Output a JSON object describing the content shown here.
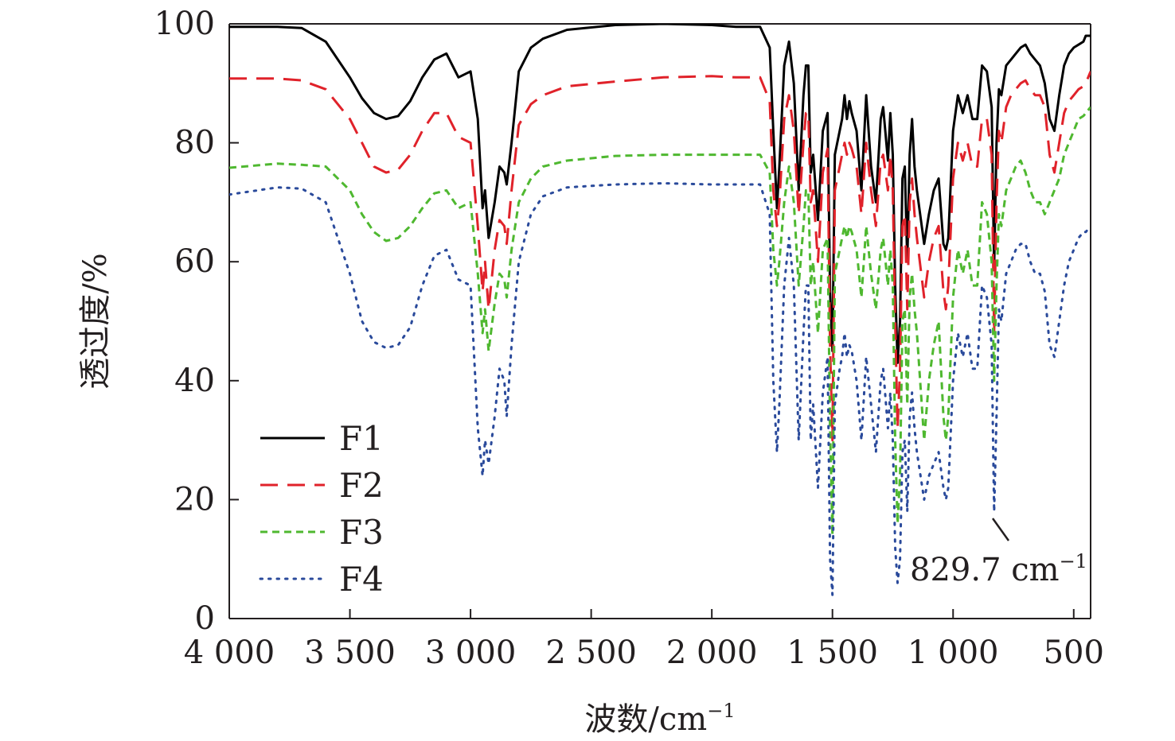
{
  "chart_data": {
    "type": "line",
    "title": "",
    "xlabel": "波数/cm",
    "xlabel_sup": "−1",
    "ylabel": "透过度/%",
    "xlim": [
      4000,
      430
    ],
    "ylim": [
      0,
      100
    ],
    "x_ticks": [
      4000,
      3500,
      3000,
      2500,
      2000,
      1500,
      1000,
      500
    ],
    "x_tick_labels": [
      "4 000",
      "3 500",
      "3 000",
      "2 500",
      "2 000",
      "1 500",
      "1 000",
      "500"
    ],
    "y_ticks": [
      0,
      20,
      40,
      60,
      80,
      100
    ],
    "y_tick_labels": [
      "0",
      "20",
      "40",
      "60",
      "80",
      "100"
    ],
    "legend": [
      "F1",
      "F2",
      "F3",
      "F4"
    ],
    "legend_position": "bottom-left",
    "annotation": {
      "text": "829.7 cm",
      "sup": "−1",
      "x": 829.7
    },
    "series": [
      {
        "name": "F1",
        "color": "#000000",
        "dash": "solid",
        "x": [
          4000,
          3800,
          3700,
          3600,
          3500,
          3450,
          3400,
          3350,
          3300,
          3250,
          3200,
          3150,
          3100,
          3050,
          3000,
          2970,
          2950,
          2940,
          2925,
          2900,
          2880,
          2860,
          2850,
          2830,
          2800,
          2750,
          2700,
          2600,
          2400,
          2200,
          2000,
          1900,
          1800,
          1760,
          1745,
          1730,
          1720,
          1700,
          1680,
          1660,
          1640,
          1620,
          1610,
          1600,
          1590,
          1580,
          1560,
          1540,
          1520,
          1510,
          1500,
          1490,
          1470,
          1460,
          1450,
          1440,
          1430,
          1420,
          1400,
          1380,
          1360,
          1340,
          1320,
          1300,
          1290,
          1270,
          1260,
          1250,
          1240,
          1230,
          1220,
          1210,
          1200,
          1190,
          1180,
          1170,
          1160,
          1150,
          1120,
          1100,
          1080,
          1060,
          1040,
          1030,
          1020,
          1000,
          980,
          960,
          940,
          920,
          900,
          880,
          860,
          840,
          830,
          820,
          810,
          800,
          780,
          760,
          740,
          720,
          700,
          680,
          660,
          640,
          620,
          600,
          580,
          560,
          540,
          520,
          500,
          480,
          460,
          450,
          430
        ],
        "y": [
          99.5,
          99.5,
          99.3,
          97,
          91,
          87.5,
          85,
          84,
          84.5,
          87,
          91,
          94,
          95,
          91,
          92,
          84,
          69,
          72,
          64,
          70,
          76,
          75,
          73,
          80,
          92,
          96,
          97.5,
          99,
          99.8,
          100,
          99.8,
          99.5,
          99.5,
          96,
          82,
          69,
          76,
          93,
          97,
          90,
          72,
          88,
          93,
          93,
          75,
          78,
          67,
          82,
          85,
          55,
          45,
          78,
          82,
          84,
          88,
          84,
          87,
          85,
          82,
          72,
          88,
          76,
          70,
          84,
          86,
          77,
          85,
          78,
          56,
          43,
          50,
          74,
          76,
          60,
          78,
          84,
          76,
          72,
          63,
          68,
          72,
          74,
          63,
          62,
          64,
          82,
          88,
          85,
          88,
          84,
          84,
          93,
          92,
          86,
          59,
          80,
          89,
          88,
          93,
          94,
          95,
          96,
          96.5,
          95,
          94,
          93,
          90,
          84,
          82,
          88,
          93,
          95,
          96,
          96.5,
          97,
          98,
          98
        ]
      },
      {
        "name": "F2",
        "color": "#e0222a",
        "dash": "long-dash",
        "x": [
          4000,
          3800,
          3700,
          3600,
          3500,
          3450,
          3400,
          3350,
          3300,
          3250,
          3200,
          3150,
          3100,
          3050,
          3000,
          2970,
          2950,
          2940,
          2925,
          2900,
          2880,
          2860,
          2850,
          2830,
          2800,
          2750,
          2700,
          2600,
          2400,
          2200,
          2000,
          1900,
          1800,
          1760,
          1745,
          1730,
          1720,
          1700,
          1680,
          1660,
          1640,
          1620,
          1610,
          1600,
          1590,
          1580,
          1560,
          1540,
          1520,
          1510,
          1500,
          1490,
          1470,
          1460,
          1450,
          1440,
          1430,
          1420,
          1400,
          1380,
          1360,
          1340,
          1320,
          1300,
          1290,
          1270,
          1260,
          1250,
          1240,
          1230,
          1220,
          1210,
          1200,
          1190,
          1180,
          1170,
          1160,
          1150,
          1120,
          1100,
          1080,
          1060,
          1040,
          1030,
          1020,
          1000,
          980,
          960,
          940,
          920,
          900,
          880,
          860,
          840,
          830,
          820,
          810,
          800,
          780,
          760,
          740,
          720,
          700,
          680,
          660,
          640,
          620,
          600,
          580,
          560,
          540,
          520,
          500,
          480,
          460,
          450,
          430
        ],
        "y": [
          90.8,
          90.8,
          90.5,
          89,
          84,
          80,
          76,
          75,
          75.5,
          78,
          82,
          85,
          85,
          81,
          80,
          66,
          55,
          60,
          52,
          62,
          67,
          66,
          63,
          72,
          83,
          86.5,
          88,
          89.5,
          90.3,
          91,
          91.2,
          91,
          91,
          87,
          72,
          66,
          70,
          84,
          88,
          82,
          68,
          80,
          85,
          85,
          70,
          72,
          60,
          75,
          79,
          46,
          30,
          72,
          76,
          78,
          80,
          78,
          80,
          79,
          76,
          68,
          80,
          72,
          66,
          77,
          78,
          72,
          78,
          72,
          50,
          32,
          42,
          66,
          68,
          52,
          70,
          74,
          68,
          64,
          54,
          60,
          64,
          66,
          55,
          52,
          56,
          74,
          80,
          77,
          80,
          76,
          76,
          84,
          84,
          78,
          48,
          70,
          82,
          80,
          86,
          88,
          89,
          90,
          90.5,
          89,
          88,
          88,
          86,
          78,
          75,
          80,
          85,
          87,
          88,
          89,
          89.5,
          90,
          92
        ]
      },
      {
        "name": "F3",
        "color": "#4fb830",
        "dash": "short-dash",
        "x": [
          4000,
          3800,
          3700,
          3600,
          3500,
          3450,
          3400,
          3350,
          3300,
          3250,
          3200,
          3150,
          3100,
          3050,
          3000,
          2970,
          2950,
          2940,
          2925,
          2900,
          2880,
          2860,
          2850,
          2830,
          2800,
          2750,
          2700,
          2600,
          2400,
          2200,
          2000,
          1900,
          1800,
          1760,
          1745,
          1730,
          1720,
          1700,
          1680,
          1660,
          1640,
          1620,
          1610,
          1600,
          1590,
          1580,
          1560,
          1540,
          1520,
          1510,
          1500,
          1490,
          1470,
          1460,
          1450,
          1440,
          1430,
          1420,
          1400,
          1380,
          1360,
          1340,
          1320,
          1300,
          1290,
          1270,
          1260,
          1250,
          1240,
          1230,
          1220,
          1210,
          1200,
          1190,
          1180,
          1170,
          1160,
          1150,
          1120,
          1100,
          1080,
          1060,
          1040,
          1030,
          1020,
          1000,
          980,
          960,
          940,
          920,
          900,
          880,
          860,
          840,
          830,
          820,
          810,
          800,
          780,
          760,
          740,
          720,
          700,
          680,
          660,
          640,
          620,
          600,
          580,
          560,
          540,
          520,
          500,
          480,
          460,
          450,
          430
        ],
        "y": [
          75.8,
          76.5,
          76.3,
          76,
          72,
          68,
          65,
          63.5,
          64,
          66,
          69,
          71.5,
          72,
          69,
          70,
          58,
          48,
          52,
          45,
          53,
          58,
          57,
          54,
          62,
          70,
          74,
          76,
          77,
          77.8,
          78,
          78,
          78,
          78,
          75,
          62,
          56,
          60,
          70,
          76,
          70,
          56,
          66,
          72,
          72,
          56,
          60,
          48,
          62,
          64,
          32,
          14,
          58,
          62,
          64,
          66,
          64,
          66,
          65,
          62,
          54,
          66,
          58,
          52,
          62,
          64,
          56,
          62,
          56,
          30,
          16,
          24,
          50,
          52,
          36,
          54,
          58,
          52,
          48,
          30,
          40,
          46,
          50,
          34,
          30,
          34,
          54,
          62,
          58,
          62,
          56,
          56,
          70,
          68,
          60,
          40,
          56,
          68,
          66,
          72,
          74,
          76,
          77,
          75,
          72,
          70,
          70,
          68,
          70,
          72,
          74,
          78,
          80,
          82,
          84,
          84.5,
          85,
          86
        ]
      },
      {
        "name": "F4",
        "color": "#2a4a9b",
        "dash": "dotted",
        "x": [
          4000,
          3800,
          3700,
          3600,
          3500,
          3450,
          3400,
          3350,
          3300,
          3250,
          3200,
          3150,
          3100,
          3050,
          3000,
          2970,
          2950,
          2940,
          2925,
          2900,
          2880,
          2860,
          2850,
          2830,
          2800,
          2750,
          2700,
          2600,
          2400,
          2200,
          2000,
          1900,
          1800,
          1760,
          1745,
          1730,
          1720,
          1700,
          1680,
          1660,
          1640,
          1620,
          1610,
          1600,
          1590,
          1580,
          1560,
          1540,
          1520,
          1510,
          1500,
          1490,
          1470,
          1460,
          1450,
          1440,
          1430,
          1420,
          1400,
          1380,
          1360,
          1340,
          1320,
          1300,
          1290,
          1270,
          1260,
          1250,
          1240,
          1230,
          1220,
          1210,
          1200,
          1190,
          1180,
          1170,
          1160,
          1150,
          1120,
          1100,
          1080,
          1060,
          1040,
          1030,
          1020,
          1000,
          980,
          960,
          940,
          920,
          900,
          880,
          860,
          840,
          830,
          820,
          810,
          800,
          780,
          760,
          740,
          720,
          700,
          680,
          660,
          640,
          620,
          600,
          580,
          560,
          540,
          520,
          500,
          480,
          460,
          450,
          430
        ],
        "y": [
          71.3,
          72.5,
          72.3,
          70,
          58,
          50,
          46.5,
          45.5,
          46,
          49,
          56,
          61,
          62,
          57,
          56,
          32,
          24,
          30,
          26,
          34,
          42,
          40,
          34,
          46,
          60,
          68,
          71,
          72.5,
          73,
          73.2,
          73,
          73,
          73,
          68,
          40,
          28,
          36,
          56,
          64,
          56,
          30,
          48,
          56,
          56,
          30,
          36,
          22,
          38,
          44,
          10,
          4,
          36,
          42,
          44,
          48,
          44,
          46,
          45,
          40,
          30,
          44,
          36,
          28,
          40,
          42,
          32,
          38,
          30,
          12,
          6,
          10,
          28,
          30,
          18,
          34,
          38,
          32,
          28,
          20,
          24,
          26,
          28,
          22,
          20,
          22,
          40,
          48,
          44,
          48,
          42,
          42,
          56,
          54,
          46,
          18,
          34,
          52,
          50,
          58,
          60,
          62,
          63,
          63,
          60,
          58,
          58,
          55,
          46,
          44,
          50,
          56,
          60,
          62,
          64,
          65,
          65,
          66
        ]
      }
    ]
  }
}
